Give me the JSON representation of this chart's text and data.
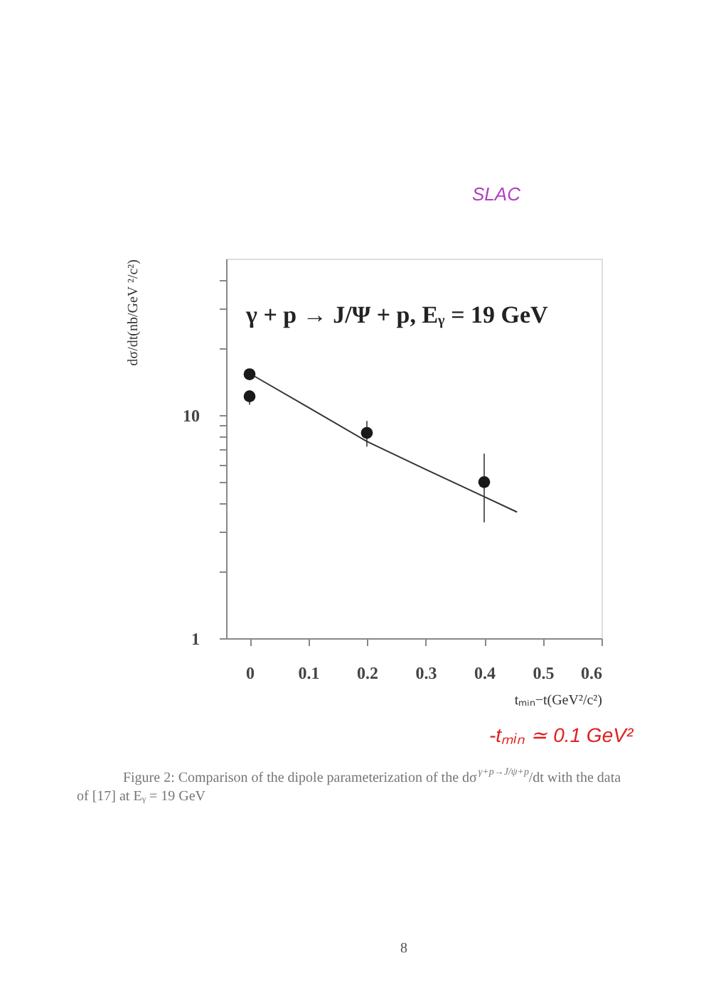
{
  "chart_data": {
    "type": "scatter",
    "title": "γ + p → J/Ψ + p, Eᵧ = 19 GeV",
    "xlabel": "tₘᵢₙ−t(GeV²/c²)",
    "ylabel": "dσ/dt(nb/GeV ²/c²)",
    "series": [
      {
        "color": "#1a1a1a",
        "x": [
          0,
          0,
          0.2,
          0.4
        ],
        "values": [
          15.2,
          12.1,
          8.3,
          5.0
        ],
        "errors": [
          null,
          [
            11.1,
            12.9
          ],
          [
            7.2,
            9.4
          ],
          [
            3.3,
            6.7
          ]
        ],
        "marker": "circle"
      },
      {
        "type": "line",
        "color": "#333333",
        "x": [
          0.008,
          0.1,
          0.2,
          0.3,
          0.4,
          0.456
        ],
        "values": [
          14.9,
          10.8,
          7.6,
          5.7,
          4.3,
          3.67
        ],
        "line_style": "solid",
        "marker": "none"
      }
    ],
    "xlim": [
      -0.04,
      0.6
    ],
    "xticks": [
      0,
      0.1,
      0.2,
      0.3,
      0.4,
      0.5,
      0.6
    ],
    "ylim": [
      1,
      50
    ],
    "yticks": [
      1,
      {
        "value": 2,
        "label": null
      },
      {
        "value": 3,
        "label": null
      },
      {
        "value": 4,
        "label": null
      },
      {
        "value": 5,
        "label": null
      },
      {
        "value": 6,
        "label": null
      },
      {
        "value": 7,
        "label": null
      },
      {
        "value": 8,
        "label": null
      },
      {
        "value": 9,
        "label": null
      },
      10,
      {
        "value": 20,
        "label": null
      },
      {
        "value": 30,
        "label": null
      },
      {
        "value": 40,
        "label": null
      }
    ],
    "log": "y",
    "grid": false,
    "annotations": [
      "SLAC",
      "-tₘᵢₙ ≃ 0.1 GeV²",
      "Figure 2:  Comparison of the dipole parameterization of the dσ$^{γ+p→J/ψ+p}$/dt with the data",
      "of [17] at Eᵧ = 19 GeV",
      "8"
    ]
  }
}
